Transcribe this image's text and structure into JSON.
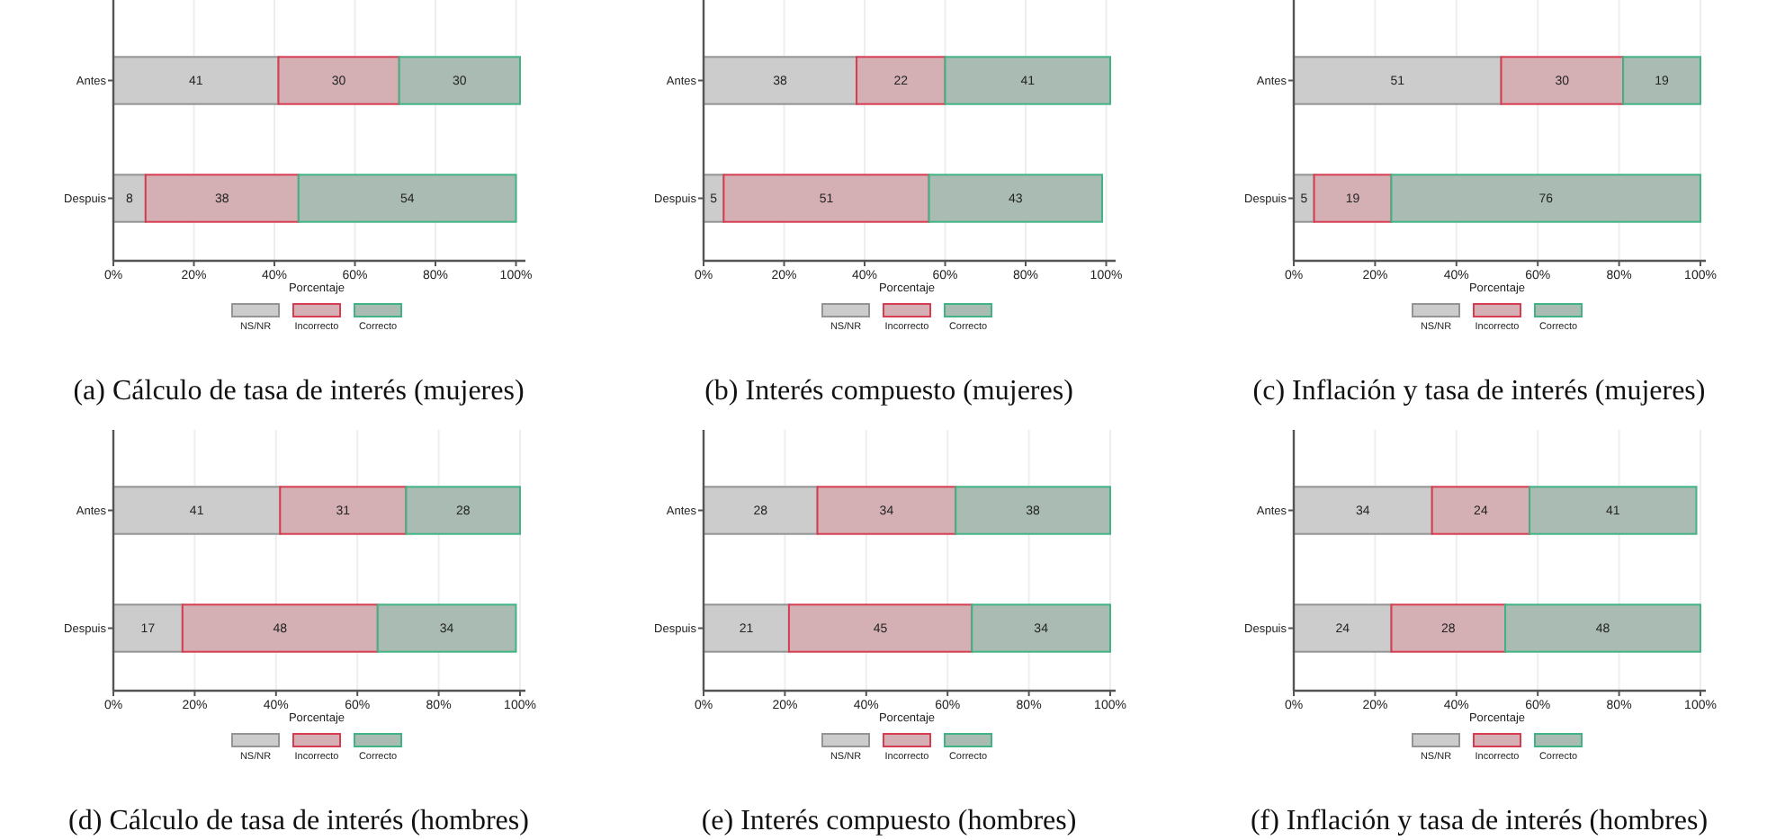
{
  "chart_data": [
    {
      "type": "bar",
      "orientation": "horizontal",
      "stacked": true,
      "title": "(a) Cálculo de tasa de interés (mujeres)",
      "xlabel": "Porcentaje",
      "categories": [
        "Antes",
        "Despuis"
      ],
      "series": [
        {
          "name": "NS/NR",
          "color": "#cccccc",
          "values": [
            41,
            8
          ]
        },
        {
          "name": "Incorrecto",
          "color": "#d4afb4",
          "values": [
            30,
            38
          ]
        },
        {
          "name": "Correcto",
          "color": "#aabbb4",
          "values": [
            30,
            54
          ]
        }
      ],
      "xlim": [
        0,
        101
      ],
      "xticks": [
        {
          "value": 0,
          "label": "0%"
        },
        {
          "value": 20,
          "label": "20%"
        },
        {
          "value": 40,
          "label": "40%"
        },
        {
          "value": 60,
          "label": "60%"
        },
        {
          "value": 80,
          "label": "80%"
        },
        {
          "value": 100,
          "label": "100%"
        }
      ],
      "grid": "x",
      "legend": "bottom",
      "data_labels": true
    },
    {
      "type": "bar",
      "orientation": "horizontal",
      "stacked": true,
      "title": "(b) Interés compuesto (mujeres)",
      "xlabel": "Porcentaje",
      "categories": [
        "Antes",
        "Despuis"
      ],
      "series": [
        {
          "name": "NS/NR",
          "color": "#cccccc",
          "values": [
            38,
            5
          ]
        },
        {
          "name": "Incorrecto",
          "color": "#d4afb4",
          "values": [
            22,
            51
          ]
        },
        {
          "name": "Correcto",
          "color": "#aabbb4",
          "values": [
            41,
            43
          ]
        }
      ],
      "xlim": [
        0,
        101
      ],
      "xticks": [
        {
          "value": 0,
          "label": "0%"
        },
        {
          "value": 20,
          "label": "20%"
        },
        {
          "value": 40,
          "label": "40%"
        },
        {
          "value": 60,
          "label": "60%"
        },
        {
          "value": 80,
          "label": "80%"
        },
        {
          "value": 100,
          "label": "100%"
        }
      ],
      "grid": "x",
      "legend": "bottom",
      "data_labels": true
    },
    {
      "type": "bar",
      "orientation": "horizontal",
      "stacked": true,
      "title": "(c) Inflación y tasa de interés (mujeres)",
      "xlabel": "Porcentaje",
      "categories": [
        "Antes",
        "Despuis"
      ],
      "series": [
        {
          "name": "NS/NR",
          "color": "#cccccc",
          "values": [
            51,
            5
          ]
        },
        {
          "name": "Incorrecto",
          "color": "#d4afb4",
          "values": [
            30,
            19
          ]
        },
        {
          "name": "Correcto",
          "color": "#aabbb4",
          "values": [
            19,
            76
          ]
        }
      ],
      "xlim": [
        0,
        100
      ],
      "xticks": [
        {
          "value": 0,
          "label": "0%"
        },
        {
          "value": 20,
          "label": "20%"
        },
        {
          "value": 40,
          "label": "40%"
        },
        {
          "value": 60,
          "label": "60%"
        },
        {
          "value": 80,
          "label": "80%"
        },
        {
          "value": 100,
          "label": "100%"
        }
      ],
      "grid": "x",
      "legend": "bottom",
      "data_labels": true
    },
    {
      "type": "bar",
      "orientation": "horizontal",
      "stacked": true,
      "title": "(d) Cálculo de tasa de interés (hombres)",
      "xlabel": "Porcentaje",
      "categories": [
        "Antes",
        "Despuis"
      ],
      "series": [
        {
          "name": "NS/NR",
          "color": "#cccccc",
          "values": [
            41,
            17
          ]
        },
        {
          "name": "Incorrecto",
          "color": "#d4afb4",
          "values": [
            31,
            48
          ]
        },
        {
          "name": "Correcto",
          "color": "#aabbb4",
          "values": [
            28,
            34
          ]
        }
      ],
      "xlim": [
        0,
        100
      ],
      "xticks": [
        {
          "value": 0,
          "label": "0%"
        },
        {
          "value": 20,
          "label": "20%"
        },
        {
          "value": 40,
          "label": "40%"
        },
        {
          "value": 60,
          "label": "60%"
        },
        {
          "value": 80,
          "label": "80%"
        },
        {
          "value": 100,
          "label": "100%"
        }
      ],
      "grid": "x",
      "legend": "bottom",
      "data_labels": true
    },
    {
      "type": "bar",
      "orientation": "horizontal",
      "stacked": true,
      "title": "(e) Interés compuesto (hombres)",
      "xlabel": "Porcentaje",
      "categories": [
        "Antes",
        "Despuis"
      ],
      "series": [
        {
          "name": "NS/NR",
          "color": "#cccccc",
          "values": [
            28,
            21
          ]
        },
        {
          "name": "Incorrecto",
          "color": "#d4afb4",
          "values": [
            34,
            45
          ]
        },
        {
          "name": "Correcto",
          "color": "#aabbb4",
          "values": [
            38,
            34
          ]
        }
      ],
      "xlim": [
        0,
        100
      ],
      "xticks": [
        {
          "value": 0,
          "label": "0%"
        },
        {
          "value": 20,
          "label": "20%"
        },
        {
          "value": 40,
          "label": "40%"
        },
        {
          "value": 60,
          "label": "60%"
        },
        {
          "value": 80,
          "label": "80%"
        },
        {
          "value": 100,
          "label": "100%"
        }
      ],
      "grid": "x",
      "legend": "bottom",
      "data_labels": true
    },
    {
      "type": "bar",
      "orientation": "horizontal",
      "stacked": true,
      "title": "(f) Inflación y tasa de interés (hombres)",
      "xlabel": "Porcentaje",
      "categories": [
        "Antes",
        "Despuis"
      ],
      "series": [
        {
          "name": "NS/NR",
          "color": "#cccccc",
          "values": [
            34,
            24
          ]
        },
        {
          "name": "Incorrecto",
          "color": "#d4afb4",
          "values": [
            24,
            28
          ]
        },
        {
          "name": "Correcto",
          "color": "#aabbb4",
          "values": [
            41,
            48
          ]
        }
      ],
      "xlim": [
        0,
        100
      ],
      "xticks": [
        {
          "value": 0,
          "label": "0%"
        },
        {
          "value": 20,
          "label": "20%"
        },
        {
          "value": 40,
          "label": "40%"
        },
        {
          "value": 60,
          "label": "60%"
        },
        {
          "value": 80,
          "label": "80%"
        },
        {
          "value": 100,
          "label": "100%"
        }
      ],
      "grid": "x",
      "legend": "bottom",
      "data_labels": true
    }
  ]
}
